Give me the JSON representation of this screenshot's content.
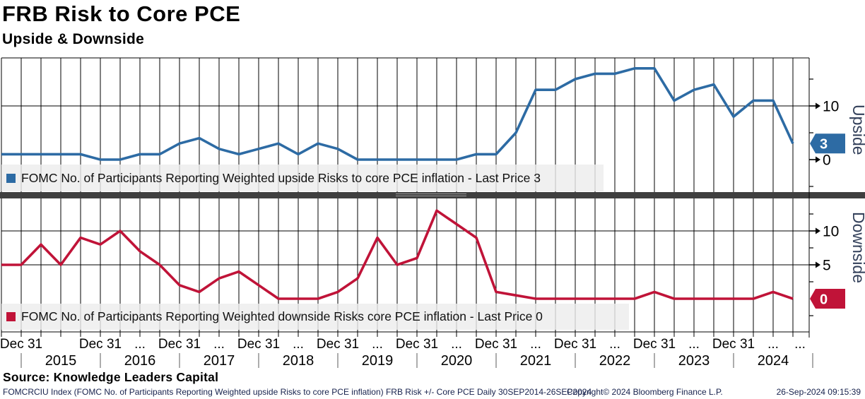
{
  "header": {
    "title": "FRB Risk to Core PCE",
    "subtitle": "Upside & Downside"
  },
  "chart_data": [
    {
      "type": "line",
      "panel": "upside",
      "title": "FOMC No. of Participants Reporting Weighted upside Risks to core PCE inflation",
      "last_price": 3,
      "line_color": "#2d6ba4",
      "x_start": "Sep 2014",
      "x_end": "Sep 2024",
      "x_frequency": "quarterly",
      "xlabel": "",
      "ylabel": "Upside",
      "ylim": [
        -6,
        19
      ],
      "yticks_labeled": [
        0,
        10
      ],
      "yticks_minor": [
        -5,
        5,
        15
      ],
      "grid": true,
      "legend_position": "bottom-left",
      "values": [
        1,
        1,
        1,
        1,
        1,
        0,
        0,
        1,
        1,
        3,
        4,
        2,
        1,
        2,
        3,
        1,
        3,
        2,
        0,
        0,
        0,
        0,
        0,
        0,
        1,
        1,
        5,
        13,
        13,
        15,
        16,
        16,
        17,
        17,
        11,
        13,
        14,
        8,
        11,
        11,
        3
      ]
    },
    {
      "type": "line",
      "panel": "downside",
      "title": "FOMC No. of Participants Reporting Weighted downside Risks core PCE inflation",
      "last_price": 0,
      "line_color": "#c01338",
      "x_start": "Sep 2014",
      "x_end": "Sep 2024",
      "x_frequency": "quarterly",
      "xlabel": "",
      "ylabel": "Downside",
      "ylim": [
        -5,
        15
      ],
      "yticks_labeled": [
        5,
        10
      ],
      "yticks_minor": [
        -2.5,
        2.5,
        7.5,
        12.5
      ],
      "grid": true,
      "legend_position": "bottom-left",
      "values": [
        5,
        5,
        8,
        5,
        9,
        8,
        10,
        7,
        5,
        2,
        1,
        3,
        4,
        2,
        0,
        0,
        0,
        1,
        3,
        9,
        5,
        6,
        13,
        11,
        9,
        1,
        0.5,
        0,
        0,
        0,
        0,
        0,
        0,
        1,
        0,
        0,
        0,
        0,
        0,
        1,
        0
      ]
    }
  ],
  "x_axis": {
    "tick_labels": [
      "Dec 31",
      "Dec 31",
      "...",
      "Dec 31",
      "...",
      "Dec 31",
      "...",
      "Dec 31",
      "...",
      "Dec 31",
      "...",
      "Dec 31",
      "...",
      "Dec 31",
      "...",
      "Dec 31",
      "...",
      "Dec 31",
      "...",
      "..."
    ],
    "years": [
      "2015",
      "2016",
      "2017",
      "2018",
      "2019",
      "2020",
      "2021",
      "2022",
      "2023",
      "2024"
    ]
  },
  "right_axis": {
    "upside_label": "Upside",
    "downside_label": "Downside",
    "upside_marker": "3",
    "downside_marker": "0",
    "upside_tick_labels": [
      "10",
      "0"
    ],
    "downside_tick_labels": [
      "10",
      "5"
    ]
  },
  "legends": [
    {
      "swatch_color": "#2d6ba4",
      "label": "FOMC No. of Participants Reporting Weighted upside Risks to core PCE inflation - Last Price 3"
    },
    {
      "swatch_color": "#c01338",
      "label": "FOMC No. of Participants Reporting Weighted downside Risks core PCE inflation - Last Price 0"
    }
  ],
  "source": "Source: Knowledge Leaders Capital",
  "footer": {
    "left": "FOMCRCIU Index (FOMC No. of Participants Reporting Weighted upside Risks to core PCE inflation) FRB Risk +/- Core PCE  Daily 30SEP2014-26SEP2024",
    "center": "Copyright© 2024 Bloomberg Finance L.P.",
    "right": "26-Sep-2024 09:15:39"
  },
  "colors": {
    "upside_line": "#2d6ba4",
    "downside_line": "#c01338",
    "grid": "#000000",
    "separator_bar": "#3f3f3f",
    "legend_bg": "#ededed",
    "axis_title_text": "#33405a",
    "footer_text": "#17224d",
    "marker_text": "#ffffff"
  }
}
